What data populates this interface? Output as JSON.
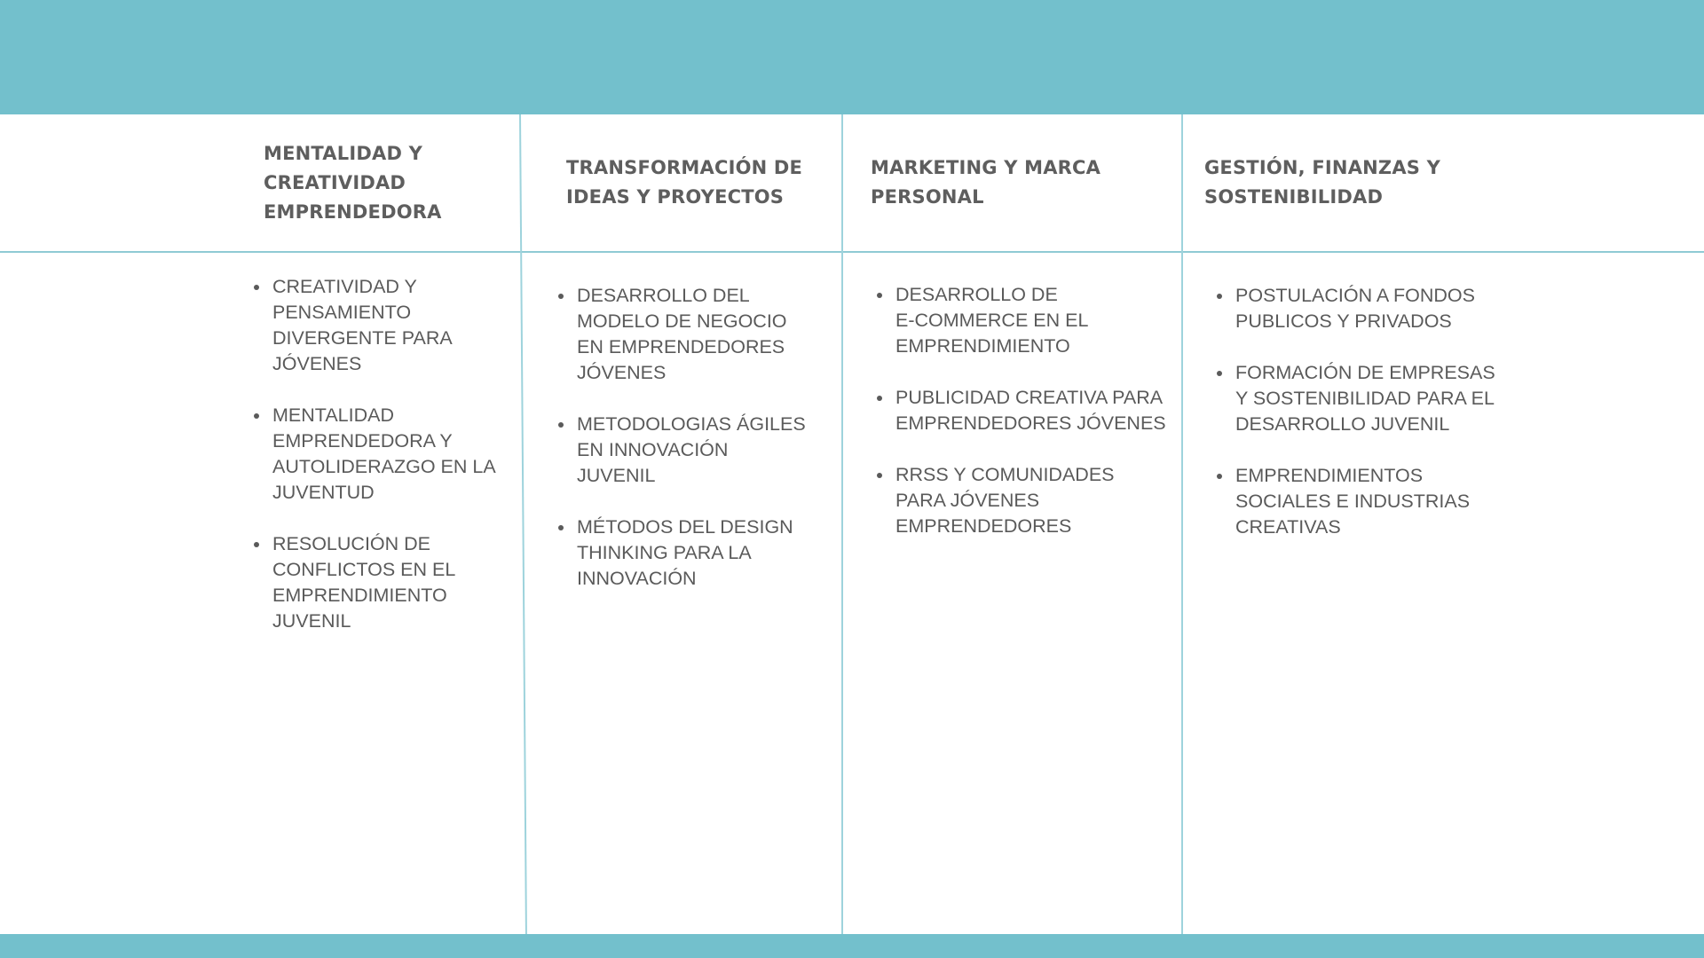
{
  "colors": {
    "accent": "#73c0cc",
    "text": "#555555"
  },
  "columns": [
    {
      "title": "MENTALIDAD Y\nCREATIVIDAD\nEMPRENDEDORA",
      "items": [
        "CREATIVIDAD Y\nPENSAMIENTO\nDIVERGENTE PARA\nJÓVENES",
        "MENTALIDAD\nEMPRENDEDORA Y\nAUTOLIDERAZGO EN LA\nJUVENTUD",
        "RESOLUCIÓN DE\nCONFLICTOS EN EL\nEMPRENDIMIENTO\nJUVENIL"
      ]
    },
    {
      "title": "TRANSFORMACIÓN DE\nIDEAS Y PROYECTOS",
      "items": [
        "DESARROLLO DEL\nMODELO DE NEGOCIO\nEN EMPRENDEDORES\nJÓVENES",
        "METODOLOGIAS ÁGILES\nEN INNOVACIÓN\nJUVENIL",
        "MÉTODOS DEL DESIGN\nTHINKING PARA LA\nINNOVACIÓN"
      ]
    },
    {
      "title": "MARKETING Y MARCA\nPERSONAL",
      "items": [
        "DESARROLLO DE\nE-COMMERCE EN EL\nEMPRENDIMIENTO",
        "PUBLICIDAD CREATIVA PARA\nEMPRENDEDORES JÓVENES",
        "RRSS Y COMUNIDADES\nPARA JÓVENES\nEMPRENDEDORES"
      ]
    },
    {
      "title": "GESTIÓN, FINANZAS Y\nSOSTENIBILIDAD",
      "items": [
        "POSTULACIÓN A FONDOS\nPUBLICOS Y PRIVADOS",
        "FORMACIÓN DE EMPRESAS\nY SOSTENIBILIDAD PARA EL\nDESARROLLO JUVENIL",
        "EMPRENDIMIENTOS\nSOCIALES E INDUSTRIAS\nCREATIVAS"
      ]
    }
  ]
}
